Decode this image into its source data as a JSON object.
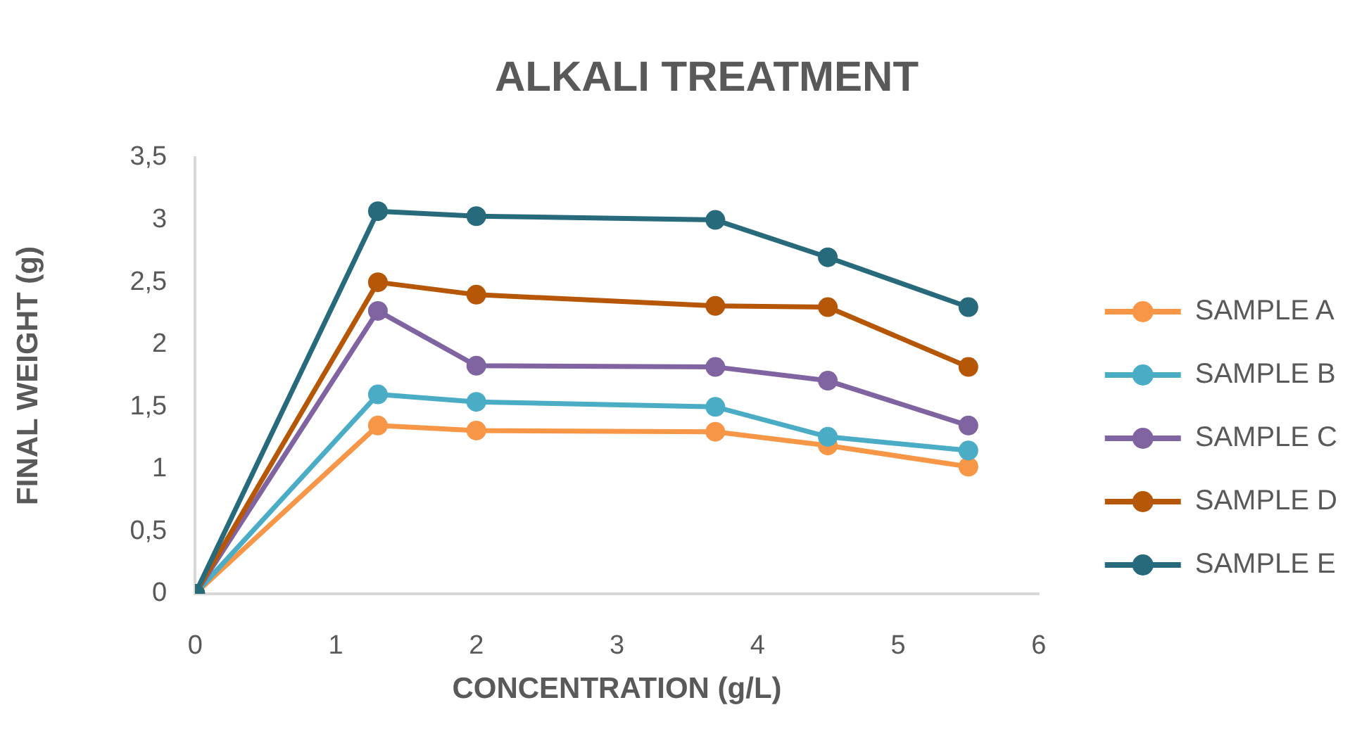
{
  "chart_data": {
    "type": "line",
    "title": "ALKALI TREATMENT",
    "xlabel": "CONCENTRATION (g/L)",
    "ylabel": "FINAL WEIGHT (g)",
    "x": [
      0,
      1.3,
      2,
      3.7,
      4.5,
      5.5
    ],
    "series": [
      {
        "name": "SAMPLE A",
        "color": "#f79646",
        "values": [
          0,
          1.35,
          1.31,
          1.3,
          1.19,
          1.02
        ]
      },
      {
        "name": "SAMPLE B",
        "color": "#4bacc6",
        "values": [
          0,
          1.6,
          1.54,
          1.5,
          1.26,
          1.15
        ]
      },
      {
        "name": "SAMPLE C",
        "color": "#8064a2",
        "values": [
          0,
          2.27,
          1.83,
          1.82,
          1.71,
          1.35
        ]
      },
      {
        "name": "SAMPLE D",
        "color": "#b65708",
        "values": [
          0,
          2.5,
          2.4,
          2.31,
          2.3,
          1.82
        ]
      },
      {
        "name": "SAMPLE E",
        "color": "#276a7c",
        "values": [
          0,
          3.07,
          3.03,
          3.0,
          2.7,
          2.3
        ]
      }
    ],
    "xlim": [
      0,
      6
    ],
    "xticks": [
      0,
      1,
      2,
      3,
      4,
      5,
      6
    ],
    "ylim": [
      0,
      3.5
    ],
    "yticks": [
      0,
      {
        "value": 0.5,
        "label": "0,5"
      },
      1,
      {
        "value": 1.5,
        "label": "1,5"
      },
      2,
      {
        "value": 2.5,
        "label": "2,5"
      },
      3,
      {
        "value": 3.5,
        "label": "3,5"
      }
    ],
    "grid": false,
    "legend": "right",
    "marker": "circle",
    "line_style": "solid"
  }
}
